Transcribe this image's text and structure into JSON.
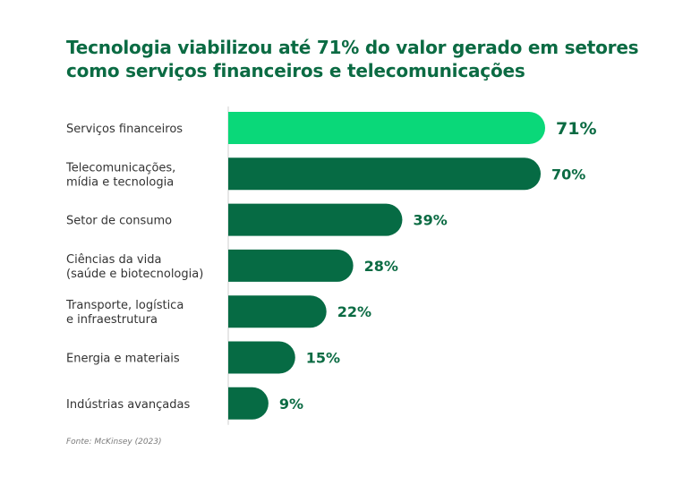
{
  "title": "Tecnologia viabilizou até 71% do valor gerado em setores como serviços financeiros e telecomunicações",
  "source": "Fonte: McKinsey (2023)",
  "colors": {
    "title": "#0b6b43",
    "bar_default": "#066b44",
    "bar_highlight": "#0ad879",
    "value_text": "#0b6b43",
    "category_text": "#333333",
    "axis_line": "#cfcfcf"
  },
  "chart_data": {
    "type": "bar",
    "orientation": "horizontal",
    "categories": [
      [
        "Serviços financeiros"
      ],
      [
        "Telecomunicações,",
        "mídia e tecnologia"
      ],
      [
        "Setor de consumo"
      ],
      [
        "Ciências da vida",
        "(saúde e biotecnologia)"
      ],
      [
        "Transporte, logística",
        "e infraestrutura"
      ],
      [
        "Energia e materiais"
      ],
      [
        "Indústrias avançadas"
      ]
    ],
    "values": [
      71,
      70,
      39,
      28,
      22,
      15,
      9
    ],
    "value_labels": [
      "71%",
      "70%",
      "39%",
      "28%",
      "22%",
      "15%",
      "9%"
    ],
    "highlight_index": 0,
    "xlim": [
      0,
      100
    ],
    "unit": "%",
    "grid": false,
    "legend": "none"
  }
}
